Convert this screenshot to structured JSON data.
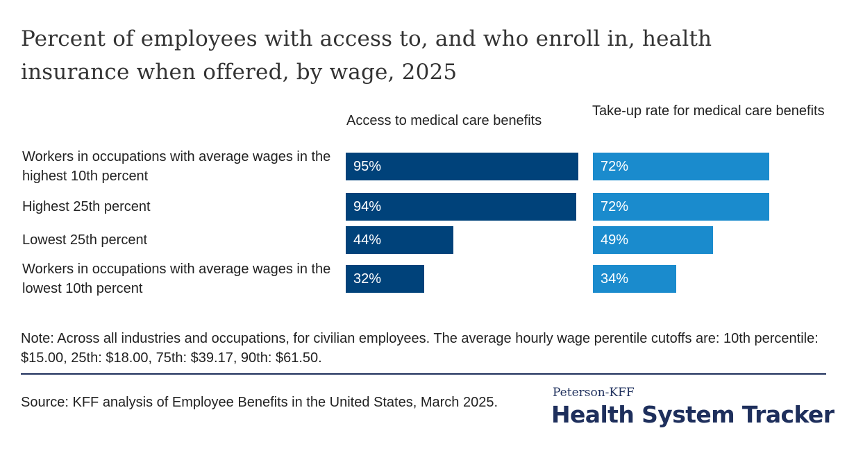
{
  "chart_data": {
    "type": "bar",
    "title": "Percent of employees with access to, and who enroll in, health insurance when offered, by wage,  2025",
    "categories": [
      "Workers in occupations with average wages in the highest 10th percent",
      "Highest 25th percent",
      "Lowest 25th percent",
      "Workers in occupations with average wages in the lowest 10th percent"
    ],
    "series": [
      {
        "name": "Access to medical care benefits",
        "values": [
          95,
          94,
          44,
          32
        ],
        "labels": [
          "95%",
          "94%",
          "44%",
          "32%"
        ],
        "color": "#00427a"
      },
      {
        "name": "Take-up rate for medical care benefits",
        "values": [
          72,
          72,
          49,
          34
        ],
        "labels": [
          "72%",
          "72%",
          "49%",
          "34%"
        ],
        "color": "#1a8bcd"
      }
    ],
    "xlim": [
      0,
      100
    ],
    "grid": false,
    "legend": "column headers",
    "note": "Note: Across all industries and occupations, for civilian employees. The average hourly wage perentile cutoffs are: 10th percentile: $15.00, 25th: $18.00, 75th: $39.17, 90th: $61.50.",
    "source": "Source: KFF analysis of Employee Benefits in the United States, March 2025."
  },
  "branding": {
    "small": "Peterson-KFF",
    "big": "Health System Tracker"
  }
}
